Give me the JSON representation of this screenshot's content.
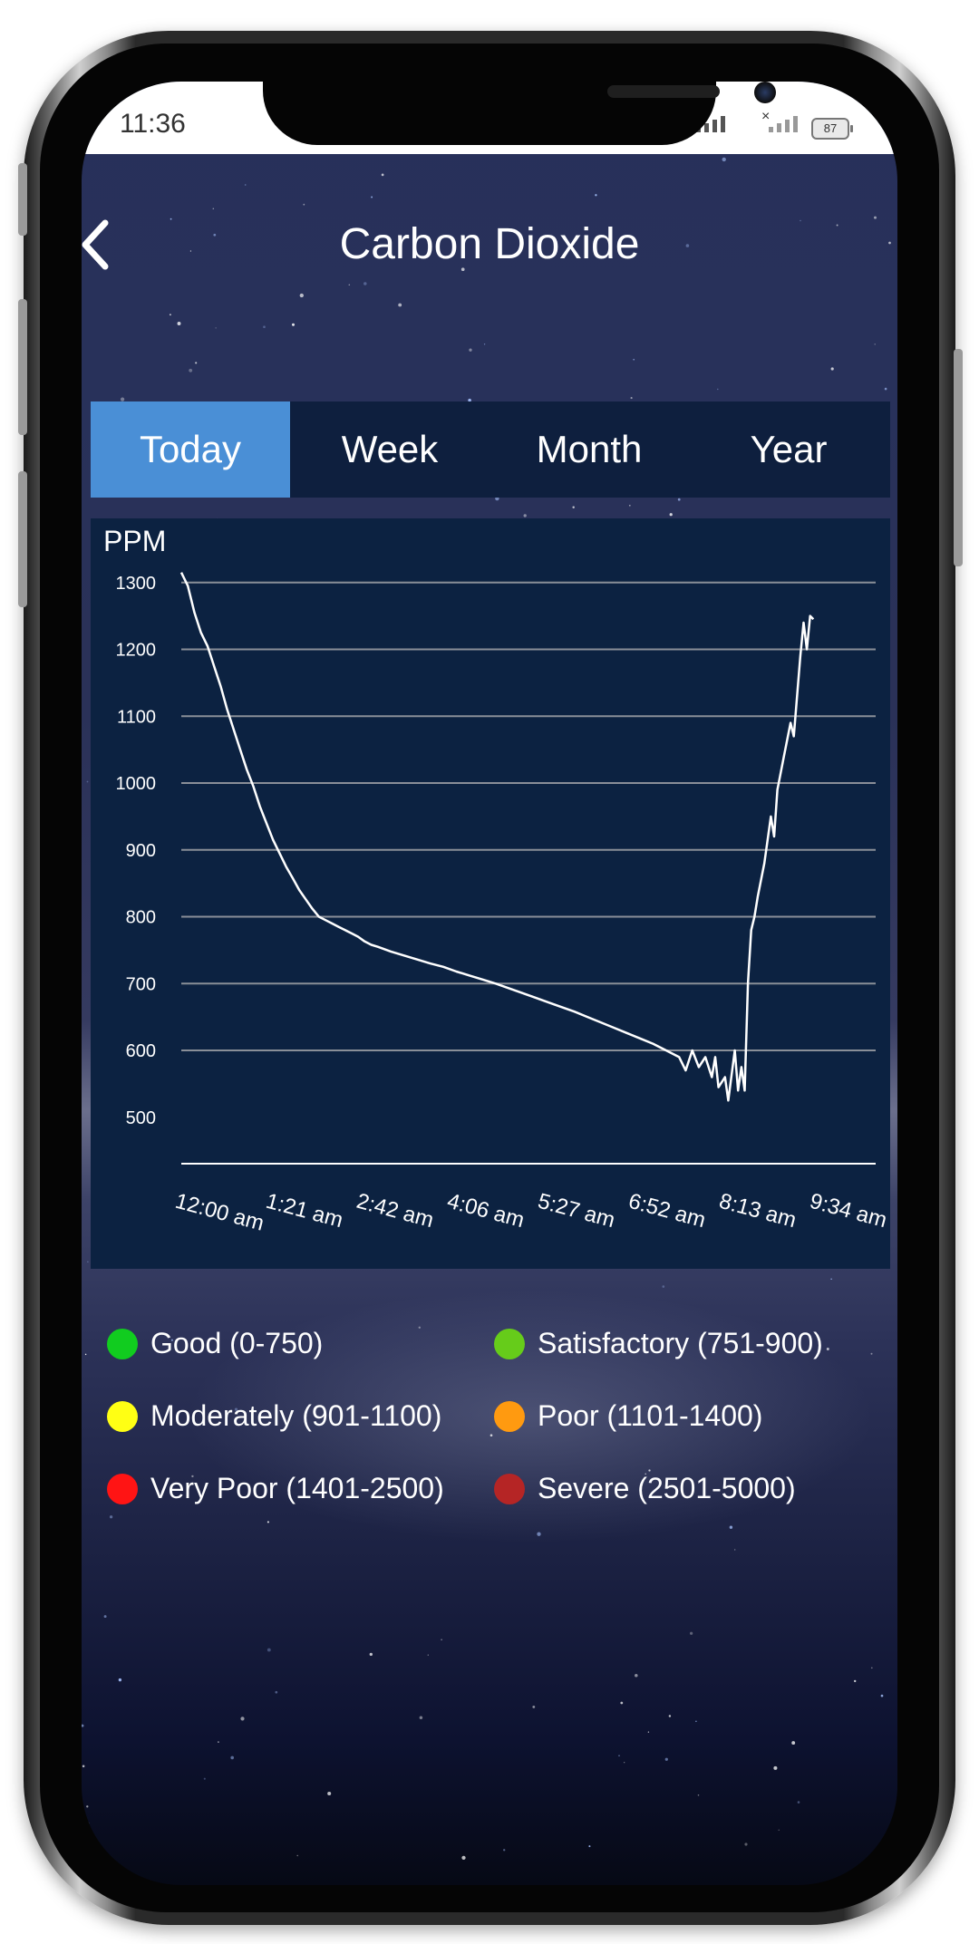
{
  "status_bar": {
    "time": "11:36",
    "battery": "87"
  },
  "header": {
    "title": "Carbon Dioxide",
    "back_icon": "chevron-left-icon"
  },
  "tabs": [
    {
      "label": "Today",
      "active": true
    },
    {
      "label": "Week",
      "active": false
    },
    {
      "label": "Month",
      "active": false
    },
    {
      "label": "Year",
      "active": false
    }
  ],
  "chart_data": {
    "type": "line",
    "ylabel": "PPM",
    "y_ticks": [
      500,
      600,
      700,
      800,
      900,
      1000,
      1100,
      1200,
      1300
    ],
    "ylim": [
      440,
      1320
    ],
    "x_ticks": [
      "12:00 am",
      "1:21 am",
      "2:42 am",
      "4:06 am",
      "5:27 am",
      "6:52 am",
      "8:13 am",
      "9:34 am"
    ],
    "x_unit": "hours after 12:00 am",
    "xlim": [
      0,
      10.6
    ],
    "grid": true,
    "series": [
      {
        "color": "#ffffff",
        "points": [
          [
            0.0,
            1315
          ],
          [
            0.1,
            1295
          ],
          [
            0.2,
            1255
          ],
          [
            0.3,
            1225
          ],
          [
            0.4,
            1205
          ],
          [
            0.5,
            1175
          ],
          [
            0.6,
            1145
          ],
          [
            0.7,
            1110
          ],
          [
            0.8,
            1080
          ],
          [
            0.9,
            1050
          ],
          [
            1.0,
            1020
          ],
          [
            1.1,
            995
          ],
          [
            1.2,
            965
          ],
          [
            1.3,
            940
          ],
          [
            1.4,
            915
          ],
          [
            1.5,
            895
          ],
          [
            1.6,
            875
          ],
          [
            1.7,
            858
          ],
          [
            1.8,
            840
          ],
          [
            1.9,
            826
          ],
          [
            2.0,
            812
          ],
          [
            2.1,
            800
          ],
          [
            2.2,
            795
          ],
          [
            2.3,
            790
          ],
          [
            2.4,
            785
          ],
          [
            2.5,
            780
          ],
          [
            2.6,
            775
          ],
          [
            2.7,
            770
          ],
          [
            2.8,
            763
          ],
          [
            2.9,
            758
          ],
          [
            3.0,
            755
          ],
          [
            3.2,
            748
          ],
          [
            3.4,
            742
          ],
          [
            3.6,
            736
          ],
          [
            3.8,
            730
          ],
          [
            4.0,
            725
          ],
          [
            4.2,
            718
          ],
          [
            4.4,
            712
          ],
          [
            4.6,
            706
          ],
          [
            4.8,
            700
          ],
          [
            5.0,
            693
          ],
          [
            5.2,
            686
          ],
          [
            5.4,
            679
          ],
          [
            5.6,
            672
          ],
          [
            5.8,
            665
          ],
          [
            6.0,
            658
          ],
          [
            6.2,
            650
          ],
          [
            6.4,
            642
          ],
          [
            6.6,
            634
          ],
          [
            6.8,
            626
          ],
          [
            7.0,
            618
          ],
          [
            7.2,
            610
          ],
          [
            7.4,
            600
          ],
          [
            7.6,
            590
          ],
          [
            7.7,
            570
          ],
          [
            7.8,
            600
          ],
          [
            7.9,
            575
          ],
          [
            8.0,
            590
          ],
          [
            8.1,
            560
          ],
          [
            8.15,
            590
          ],
          [
            8.2,
            545
          ],
          [
            8.3,
            560
          ],
          [
            8.35,
            525
          ],
          [
            8.45,
            600
          ],
          [
            8.5,
            540
          ],
          [
            8.55,
            575
          ],
          [
            8.6,
            540
          ],
          [
            8.65,
            700
          ],
          [
            8.7,
            780
          ],
          [
            8.75,
            800
          ],
          [
            8.8,
            830
          ],
          [
            8.9,
            880
          ],
          [
            9.0,
            950
          ],
          [
            9.05,
            920
          ],
          [
            9.1,
            990
          ],
          [
            9.2,
            1040
          ],
          [
            9.3,
            1090
          ],
          [
            9.35,
            1070
          ],
          [
            9.4,
            1130
          ],
          [
            9.45,
            1190
          ],
          [
            9.5,
            1240
          ],
          [
            9.55,
            1200
          ],
          [
            9.6,
            1250
          ],
          [
            9.65,
            1245
          ]
        ]
      }
    ]
  },
  "legend": [
    {
      "label": "Good (0-750)",
      "color": "#11cc1f"
    },
    {
      "label": "Satisfactory (751-900)",
      "color": "#66cc1a"
    },
    {
      "label": "Moderately (901-1100)",
      "color": "#ffff14"
    },
    {
      "label": "Poor (1101-1400)",
      "color": "#ff9a10"
    },
    {
      "label": "Very Poor (1401-2500)",
      "color": "#ff1414"
    },
    {
      "label": "Severe (2501-5000)",
      "color": "#b52525"
    }
  ]
}
